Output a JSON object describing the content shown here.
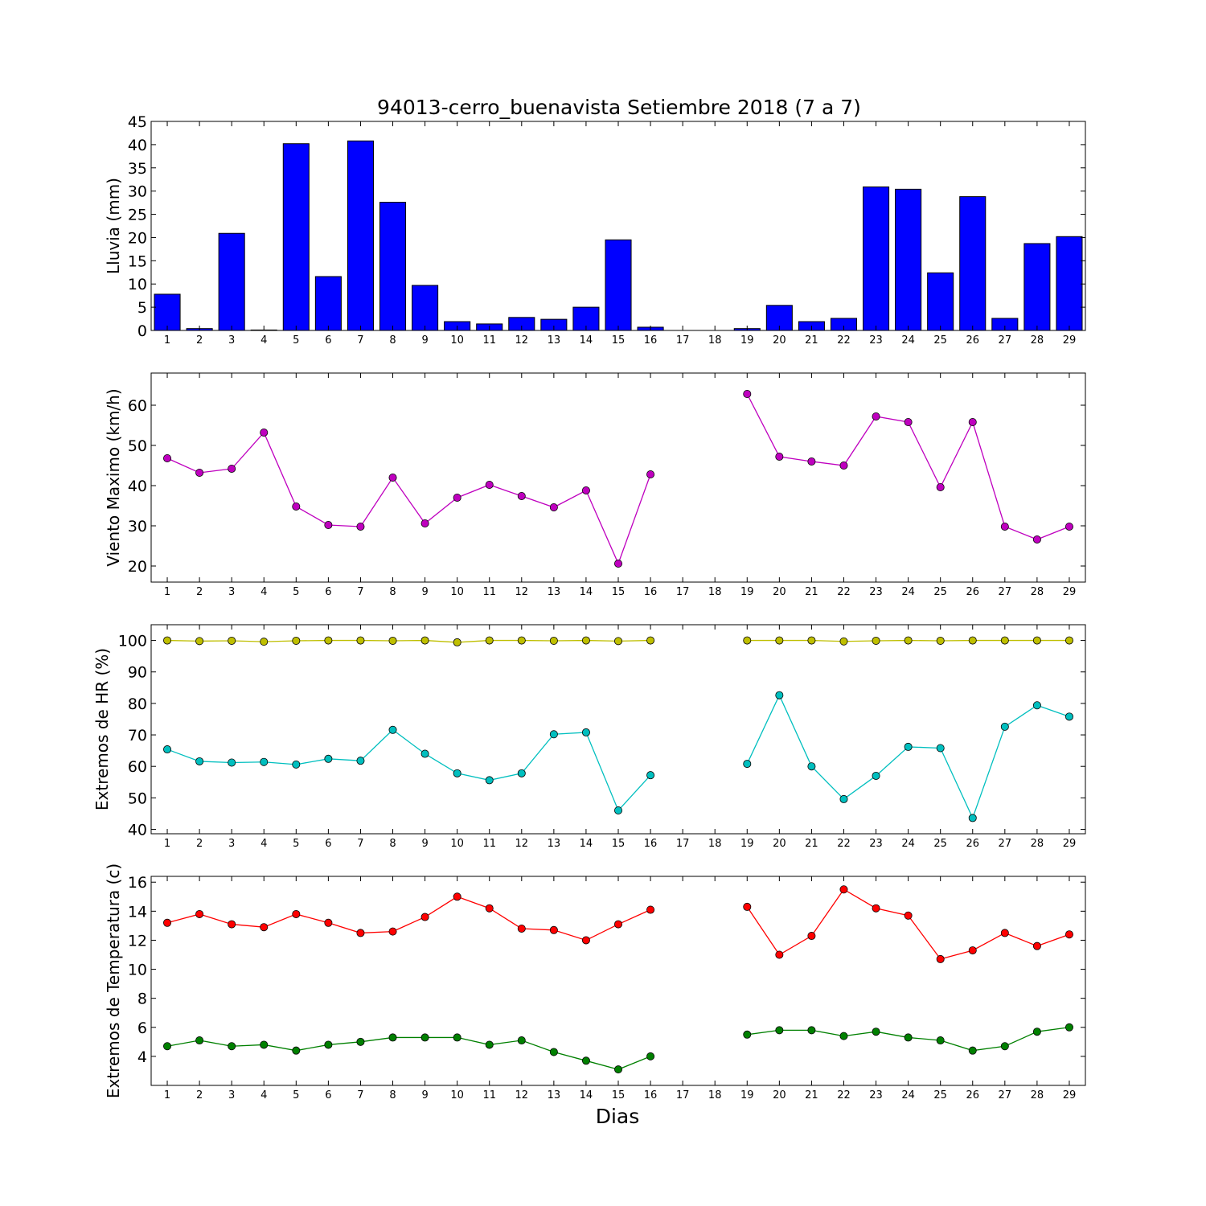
{
  "figure": {
    "title": "94013-cerro_buenavista Setiembre 2018  (7 a 7)",
    "xlabel": "Dias"
  },
  "colors": {
    "rain_bar": "#0000ff",
    "wind": "#bf00bf",
    "hr_max": "#bfbf00",
    "hr_min": "#00bfbf",
    "temp_max": "#ff0000",
    "temp_min": "#008000"
  },
  "chart_data": [
    {
      "type": "bar",
      "ylabel": "Lluvia (mm)",
      "categories": [
        1,
        2,
        3,
        4,
        5,
        6,
        7,
        8,
        9,
        10,
        11,
        12,
        13,
        14,
        15,
        16,
        17,
        18,
        19,
        20,
        21,
        22,
        23,
        24,
        25,
        26,
        27,
        28,
        29
      ],
      "values": [
        7.8,
        0.4,
        20.9,
        0.1,
        40.2,
        11.6,
        40.8,
        27.6,
        9.7,
        1.9,
        1.4,
        2.8,
        2.4,
        5.0,
        19.5,
        0.7,
        0,
        0,
        0.4,
        5.4,
        1.9,
        2.6,
        30.9,
        30.4,
        12.4,
        28.8,
        2.6,
        18.7,
        20.2
      ],
      "ylim": [
        0,
        45
      ],
      "yticks": [
        0,
        5,
        10,
        15,
        20,
        25,
        30,
        35,
        40,
        45
      ]
    },
    {
      "type": "line",
      "ylabel": "Viento Maximo (km/h)",
      "x": [
        1,
        2,
        3,
        4,
        5,
        6,
        7,
        8,
        9,
        10,
        11,
        12,
        13,
        14,
        15,
        16,
        17,
        18,
        19,
        20,
        21,
        22,
        23,
        24,
        25,
        26,
        27,
        28,
        29
      ],
      "series": [
        {
          "values": [
            46.8,
            43.2,
            44.2,
            53.2,
            34.8,
            30.2,
            29.8,
            42.0,
            30.6,
            37.0,
            40.2,
            37.4,
            34.6,
            38.8,
            20.6,
            42.8,
            null,
            null,
            62.8,
            47.2,
            46.0,
            45.0,
            57.2,
            55.8,
            39.6,
            55.8,
            29.8,
            26.6,
            29.8
          ]
        }
      ],
      "ylim": [
        16,
        68
      ],
      "yticks": [
        20,
        30,
        40,
        50,
        60
      ]
    },
    {
      "type": "line",
      "ylabel": "Extremos de HR (%)",
      "x": [
        1,
        2,
        3,
        4,
        5,
        6,
        7,
        8,
        9,
        10,
        11,
        12,
        13,
        14,
        15,
        16,
        17,
        18,
        19,
        20,
        21,
        22,
        23,
        24,
        25,
        26,
        27,
        28,
        29
      ],
      "series": [
        {
          "values": [
            100,
            99.8,
            99.9,
            99.6,
            99.9,
            100,
            100,
            99.9,
            100,
            99.4,
            100,
            100,
            99.9,
            100,
            99.8,
            100,
            null,
            null,
            100,
            100,
            100,
            99.7,
            99.9,
            100,
            99.9,
            100,
            100,
            100,
            100
          ]
        },
        {
          "values": [
            65.4,
            61.6,
            61.2,
            61.4,
            60.6,
            62.4,
            61.8,
            71.6,
            64.0,
            57.8,
            55.6,
            57.8,
            70.2,
            70.8,
            46.0,
            57.2,
            null,
            null,
            60.8,
            82.6,
            60.0,
            49.6,
            57.0,
            66.2,
            65.8,
            43.6,
            72.6,
            79.4,
            75.8
          ]
        }
      ],
      "ylim": [
        38.6,
        105
      ],
      "yticks": [
        40,
        50,
        60,
        70,
        80,
        90,
        100
      ]
    },
    {
      "type": "line",
      "ylabel": "Extremos de Temperatura (c)",
      "x": [
        1,
        2,
        3,
        4,
        5,
        6,
        7,
        8,
        9,
        10,
        11,
        12,
        13,
        14,
        15,
        16,
        17,
        18,
        19,
        20,
        21,
        22,
        23,
        24,
        25,
        26,
        27,
        28,
        29
      ],
      "series": [
        {
          "values": [
            13.2,
            13.8,
            13.1,
            12.9,
            13.8,
            13.2,
            12.5,
            12.6,
            13.6,
            15.0,
            14.2,
            12.8,
            12.7,
            12.0,
            13.1,
            14.1,
            null,
            null,
            14.3,
            11.0,
            12.3,
            15.5,
            14.2,
            13.7,
            10.7,
            11.3,
            12.5,
            11.6,
            12.4
          ]
        },
        {
          "values": [
            4.7,
            5.1,
            4.7,
            4.8,
            4.4,
            4.8,
            5.0,
            5.3,
            5.3,
            5.3,
            4.8,
            5.1,
            4.3,
            3.7,
            3.1,
            4.0,
            null,
            null,
            5.5,
            5.8,
            5.8,
            5.4,
            5.7,
            5.3,
            5.1,
            4.4,
            4.7,
            5.7,
            6.0
          ]
        }
      ],
      "ylim": [
        2.0,
        16.4
      ],
      "yticks": [
        4,
        6,
        8,
        10,
        12,
        14,
        16
      ]
    }
  ]
}
